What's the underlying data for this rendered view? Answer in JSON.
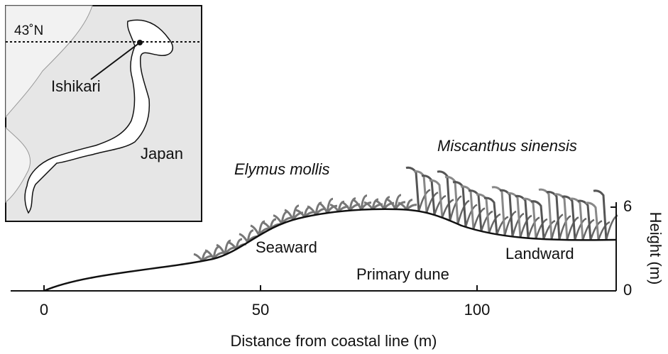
{
  "map": {
    "latitude_label": "43˚N",
    "place_label": "Ishikari",
    "country_label": "Japan"
  },
  "profile": {
    "species": [
      "Miscanthus sinensis",
      "Elymus mollis"
    ],
    "zones": [
      "Seaward",
      "Primary dune",
      "Landward"
    ],
    "x_axis": {
      "label": "Distance from coastal line (m)",
      "ticks": [
        0,
        50,
        100
      ]
    },
    "y_axis": {
      "label": "Height (m)",
      "ticks": [
        0,
        6
      ]
    }
  }
}
